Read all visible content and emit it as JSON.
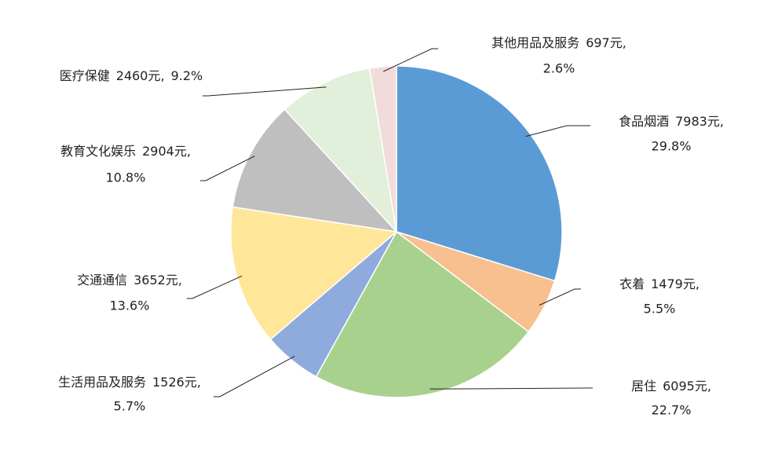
{
  "chart_data": {
    "type": "pie",
    "categories": [
      "食品烟酒",
      "衣着",
      "居住",
      "生活用品及服务",
      "交通通信",
      "教育文化娱乐",
      "医疗保健",
      "其他用品及服务"
    ],
    "values": [
      7983,
      1479,
      6095,
      1526,
      3652,
      2904,
      2460,
      697
    ],
    "value_labels": [
      "7983元,",
      "1479元,",
      "6095元,",
      "1526元,",
      "3652元,",
      "2904元,",
      "2460元,",
      "697元,"
    ],
    "shares": [
      29.8,
      5.5,
      22.7,
      5.7,
      13.6,
      10.8,
      9.2,
      2.6
    ],
    "share_labels": [
      "29.8%",
      "5.5%",
      "22.7%",
      "5.7%",
      "13.6%",
      "10.8%",
      "9.2%",
      "2.6%"
    ],
    "colors": [
      "#5b9bd5",
      "#f8c08f",
      "#a9d18e",
      "#8faadc",
      "#ffe699",
      "#bfbfbf",
      "#e2efda",
      "#f2dcdb"
    ]
  }
}
